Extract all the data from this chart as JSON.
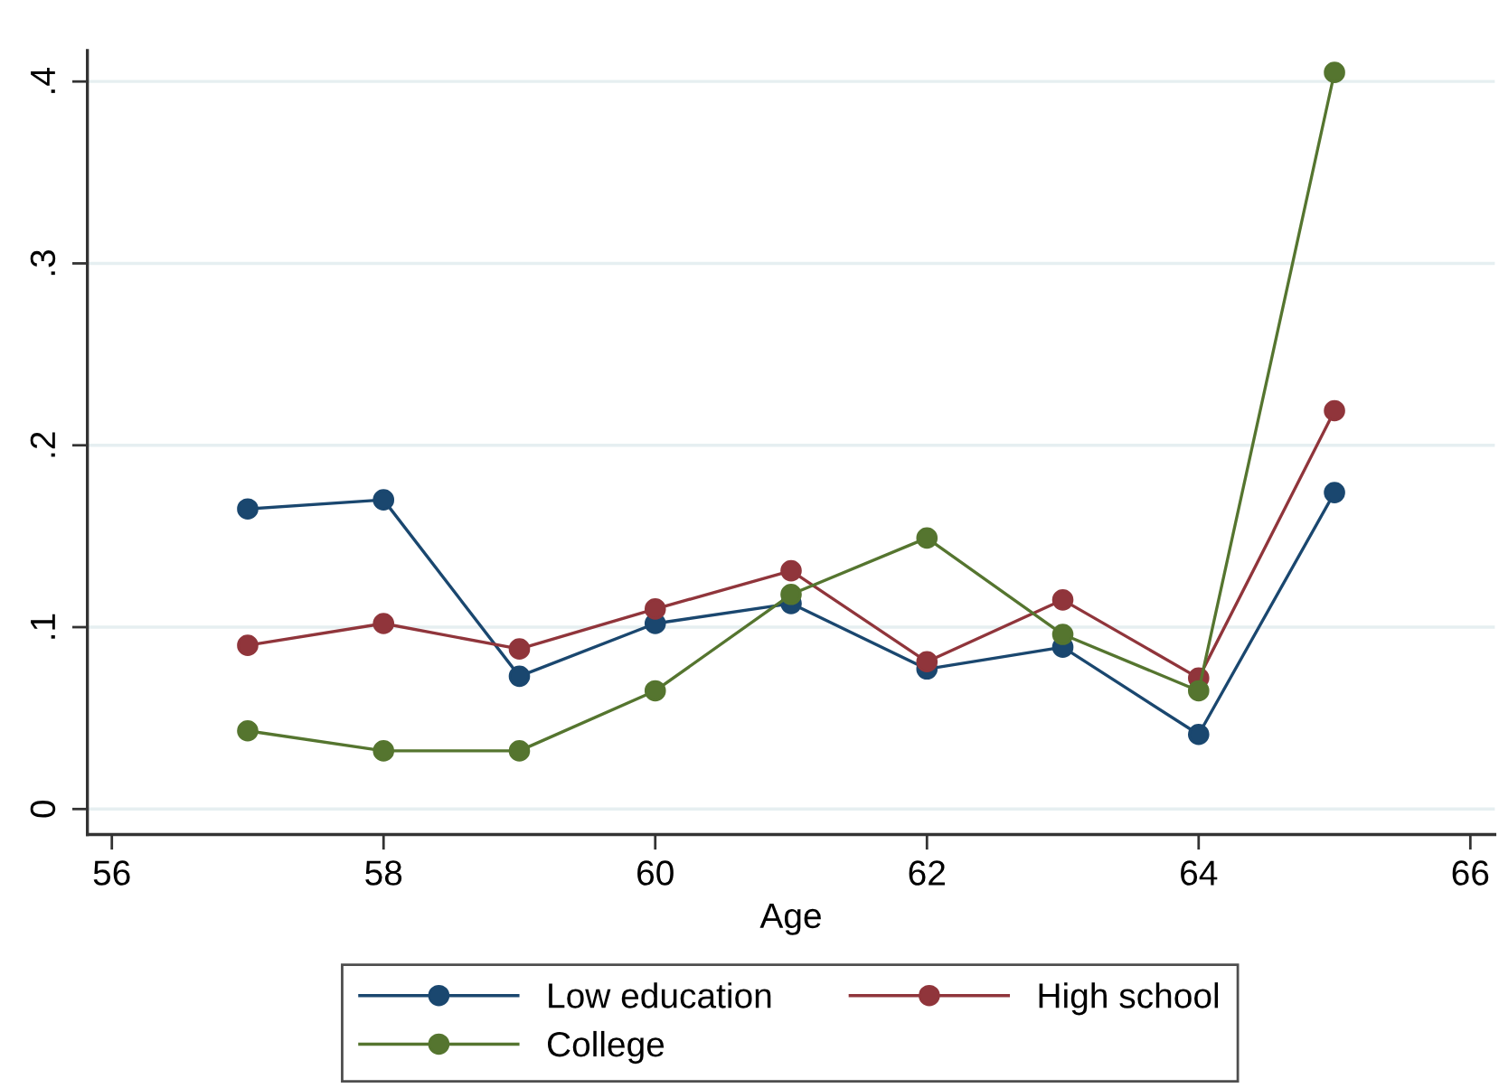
{
  "chart_data": {
    "type": "line",
    "xlabel": "Age",
    "x": [
      57,
      58,
      59,
      60,
      61,
      62,
      63,
      64,
      65
    ],
    "series": [
      {
        "name": "Low education",
        "color": "#1a476f",
        "values": [
          0.165,
          0.17,
          0.073,
          0.102,
          0.113,
          0.077,
          0.089,
          0.041,
          0.174
        ]
      },
      {
        "name": "High school",
        "color": "#90353b",
        "values": [
          0.09,
          0.102,
          0.088,
          0.11,
          0.131,
          0.081,
          0.115,
          0.072,
          0.219
        ]
      },
      {
        "name": "College",
        "color": "#55752f",
        "values": [
          0.043,
          0.032,
          0.032,
          0.065,
          0.118,
          0.149,
          0.096,
          0.065,
          0.405
        ]
      }
    ],
    "xlim": [
      55.82,
      66.18
    ],
    "xticks": [
      56,
      58,
      60,
      62,
      64,
      66
    ],
    "ylim": [
      -0.014,
      0.417
    ],
    "yticks": [
      0,
      {
        "value": 0.1,
        "label": ".1"
      },
      {
        "value": 0.2,
        "label": ".2"
      },
      {
        "value": 0.3,
        "label": ".3"
      },
      {
        "value": 0.4,
        "label": ".4"
      }
    ],
    "grid": "y",
    "legend": "bottom",
    "marker": "circle",
    "line_style": "solid"
  }
}
